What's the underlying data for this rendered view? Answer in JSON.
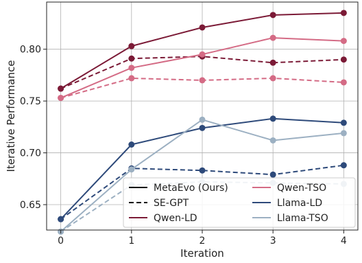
{
  "chart_data": {
    "type": "line",
    "xlabel": "Iteration",
    "ylabel": "Iterative Performance",
    "x": [
      0,
      1,
      2,
      3,
      4
    ],
    "xticks": [
      "0",
      "1",
      "2",
      "3",
      "4"
    ],
    "yticks": [
      "0.65",
      "0.70",
      "0.75",
      "0.80"
    ],
    "ytick_values": [
      0.65,
      0.7,
      0.75,
      0.8
    ],
    "xlim": [
      -0.2,
      4.2
    ],
    "ylim": [
      0.6255,
      0.8455
    ],
    "grid": true,
    "legend_position": "lower-right",
    "series": [
      {
        "name": "Qwen-LD (MetaEvo)",
        "color": "#7b1a36",
        "style": "solid",
        "values": [
          0.762,
          0.803,
          0.821,
          0.833,
          0.835
        ]
      },
      {
        "name": "Qwen-LD (SE-GPT)",
        "color": "#7b1a36",
        "style": "dashed",
        "values": [
          0.762,
          0.791,
          0.793,
          0.787,
          0.79
        ]
      },
      {
        "name": "Qwen-TSO (MetaEvo)",
        "color": "#d46b85",
        "style": "solid",
        "values": [
          0.753,
          0.782,
          0.795,
          0.811,
          0.808
        ]
      },
      {
        "name": "Qwen-TSO (SE-GPT)",
        "color": "#d46b85",
        "style": "dashed",
        "values": [
          0.753,
          0.772,
          0.77,
          0.772,
          0.768
        ]
      },
      {
        "name": "Llama-LD (MetaEvo)",
        "color": "#2e4a7a",
        "style": "solid",
        "values": [
          0.636,
          0.708,
          0.724,
          0.733,
          0.729
        ]
      },
      {
        "name": "Llama-LD (SE-GPT)",
        "color": "#2e4a7a",
        "style": "dashed",
        "values": [
          0.636,
          0.685,
          0.683,
          0.679,
          0.688
        ]
      },
      {
        "name": "Llama-TSO (MetaEvo)",
        "color": "#9cb0c2",
        "style": "solid",
        "values": [
          0.624,
          0.684,
          0.732,
          0.712,
          0.719
        ]
      },
      {
        "name": "Llama-TSO (SE-GPT)",
        "color": "#9cb0c2",
        "style": "dashed",
        "values": [
          0.624,
          0.669,
          0.672,
          0.671,
          0.67
        ]
      }
    ],
    "legend": [
      {
        "label": "MetaEvo (Ours)",
        "color": "#000000",
        "style": "solid"
      },
      {
        "label": "SE-GPT",
        "color": "#000000",
        "style": "dashed"
      },
      {
        "label": "Qwen-LD",
        "color": "#7b1a36",
        "style": "solid"
      },
      {
        "label": "Qwen-TSO",
        "color": "#d46b85",
        "style": "solid"
      },
      {
        "label": "Llama-LD",
        "color": "#2e4a7a",
        "style": "solid"
      },
      {
        "label": "Llama-TSO",
        "color": "#9cb0c2",
        "style": "solid"
      }
    ]
  }
}
